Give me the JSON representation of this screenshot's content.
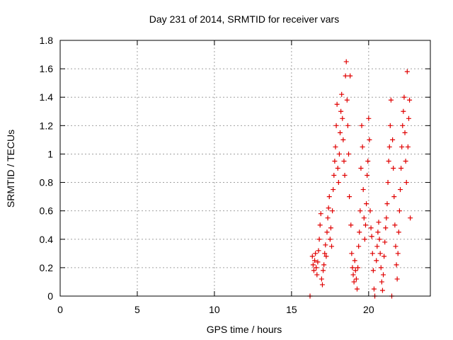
{
  "chart_data": {
    "type": "scatter",
    "title": "Day 231 of 2014, SRMTID for receiver vars",
    "xlabel": "GPS time / hours",
    "ylabel": "SRMTID / TECUs",
    "xlim": [
      0,
      24
    ],
    "ylim": [
      0,
      1.8
    ],
    "xticks": [
      0,
      5,
      10,
      15,
      20
    ],
    "xtick_labels": [
      "0",
      "5",
      "10",
      "15",
      "20"
    ],
    "yticks": [
      0,
      0.2,
      0.4,
      0.6,
      0.8,
      1,
      1.2,
      1.4,
      1.6,
      1.8
    ],
    "ytick_labels": [
      "0",
      "0.2",
      "0.4",
      "0.6",
      "0.8",
      "1",
      "1.2",
      "1.4",
      "1.6",
      "1.8"
    ],
    "grid": true,
    "marker": "+",
    "color": "#e00000",
    "series": [
      {
        "name": "SRMTID",
        "points": [
          [
            16.2,
            0.0
          ],
          [
            16.35,
            0.28
          ],
          [
            16.4,
            0.22
          ],
          [
            16.45,
            0.18
          ],
          [
            16.5,
            0.25
          ],
          [
            16.55,
            0.3
          ],
          [
            16.6,
            0.2
          ],
          [
            16.65,
            0.15
          ],
          [
            16.7,
            0.24
          ],
          [
            16.75,
            0.32
          ],
          [
            16.8,
            0.4
          ],
          [
            16.85,
            0.5
          ],
          [
            16.9,
            0.58
          ],
          [
            16.95,
            0.12
          ],
          [
            17.0,
            0.08
          ],
          [
            17.05,
            0.18
          ],
          [
            17.1,
            0.22
          ],
          [
            17.15,
            0.3
          ],
          [
            17.2,
            0.36
          ],
          [
            17.25,
            0.28
          ],
          [
            17.3,
            0.45
          ],
          [
            17.35,
            0.55
          ],
          [
            17.4,
            0.62
          ],
          [
            17.45,
            0.7
          ],
          [
            17.5,
            0.4
          ],
          [
            17.55,
            0.48
          ],
          [
            17.6,
            0.35
          ],
          [
            17.65,
            0.6
          ],
          [
            17.7,
            0.75
          ],
          [
            17.75,
            0.85
          ],
          [
            17.8,
            0.95
          ],
          [
            17.85,
            1.05
          ],
          [
            17.9,
            1.2
          ],
          [
            17.95,
            1.35
          ],
          [
            18.0,
            0.9
          ],
          [
            18.05,
            0.8
          ],
          [
            18.1,
            1.0
          ],
          [
            18.15,
            1.15
          ],
          [
            18.2,
            1.3
          ],
          [
            18.25,
            1.42
          ],
          [
            18.3,
            1.25
          ],
          [
            18.35,
            1.1
          ],
          [
            18.4,
            0.95
          ],
          [
            18.45,
            0.85
          ],
          [
            18.5,
            1.55
          ],
          [
            18.55,
            1.65
          ],
          [
            18.6,
            1.38
          ],
          [
            18.65,
            1.2
          ],
          [
            18.7,
            1.0
          ],
          [
            18.75,
            0.7
          ],
          [
            18.8,
            1.55
          ],
          [
            18.85,
            0.5
          ],
          [
            18.9,
            0.3
          ],
          [
            18.95,
            0.2
          ],
          [
            19.0,
            0.15
          ],
          [
            19.05,
            0.1
          ],
          [
            19.1,
            0.25
          ],
          [
            19.15,
            0.18
          ],
          [
            19.2,
            0.12
          ],
          [
            19.25,
            0.05
          ],
          [
            19.3,
            0.2
          ],
          [
            19.35,
            0.35
          ],
          [
            19.4,
            0.45
          ],
          [
            19.45,
            0.6
          ],
          [
            19.5,
            0.9
          ],
          [
            19.55,
            1.2
          ],
          [
            19.6,
            1.05
          ],
          [
            19.65,
            0.75
          ],
          [
            19.7,
            0.55
          ],
          [
            19.75,
            0.4
          ],
          [
            19.8,
            0.5
          ],
          [
            19.85,
            0.65
          ],
          [
            19.9,
            0.85
          ],
          [
            19.95,
            0.95
          ],
          [
            20.0,
            1.25
          ],
          [
            20.05,
            1.1
          ],
          [
            20.1,
            0.6
          ],
          [
            20.15,
            0.48
          ],
          [
            20.2,
            0.42
          ],
          [
            20.25,
            0.3
          ],
          [
            20.3,
            0.18
          ],
          [
            20.35,
            0.05
          ],
          [
            20.4,
            0.0
          ],
          [
            20.5,
            0.25
          ],
          [
            20.55,
            0.35
          ],
          [
            20.6,
            0.45
          ],
          [
            20.65,
            0.52
          ],
          [
            20.7,
            0.4
          ],
          [
            20.75,
            0.3
          ],
          [
            20.8,
            0.2
          ],
          [
            20.85,
            0.1
          ],
          [
            20.9,
            0.04
          ],
          [
            20.95,
            0.15
          ],
          [
            21.0,
            0.28
          ],
          [
            21.05,
            0.38
          ],
          [
            21.1,
            0.48
          ],
          [
            21.15,
            0.55
          ],
          [
            21.2,
            0.65
          ],
          [
            21.25,
            0.8
          ],
          [
            21.3,
            0.95
          ],
          [
            21.35,
            1.05
          ],
          [
            21.4,
            1.2
          ],
          [
            21.45,
            1.38
          ],
          [
            21.5,
            0.0
          ],
          [
            21.55,
            1.1
          ],
          [
            21.6,
            0.9
          ],
          [
            21.65,
            0.7
          ],
          [
            21.7,
            0.5
          ],
          [
            21.75,
            0.35
          ],
          [
            21.8,
            0.22
          ],
          [
            21.85,
            0.12
          ],
          [
            21.9,
            0.3
          ],
          [
            21.95,
            0.45
          ],
          [
            22.0,
            0.6
          ],
          [
            22.05,
            0.75
          ],
          [
            22.1,
            0.9
          ],
          [
            22.15,
            1.05
          ],
          [
            22.2,
            1.2
          ],
          [
            22.25,
            1.3
          ],
          [
            22.3,
            1.4
          ],
          [
            22.35,
            1.15
          ],
          [
            22.4,
            0.95
          ],
          [
            22.45,
            0.8
          ],
          [
            22.5,
            1.58
          ],
          [
            22.55,
            1.05
          ],
          [
            22.6,
            1.25
          ],
          [
            22.65,
            1.38
          ],
          [
            22.7,
            0.55
          ]
        ]
      }
    ]
  }
}
